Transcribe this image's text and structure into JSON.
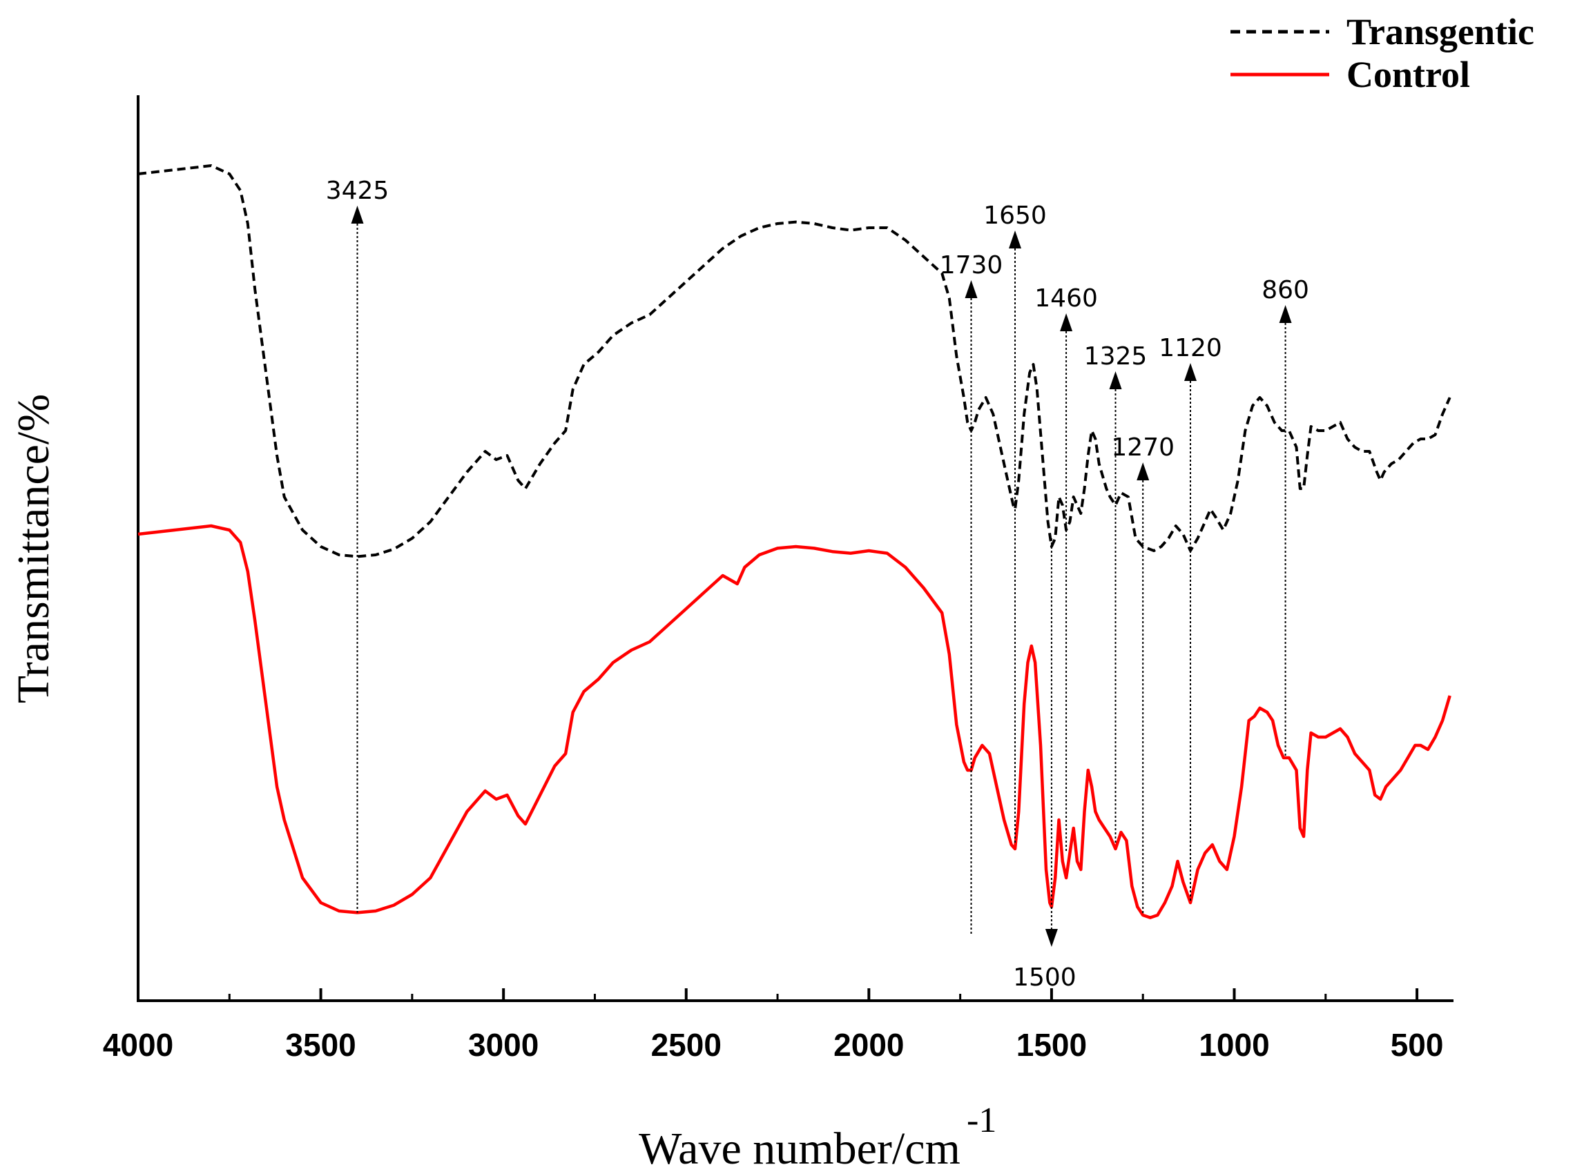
{
  "chart_data": {
    "type": "line",
    "title": "",
    "xlabel": "Wave number/cm",
    "xlabel_superscript": "-1",
    "ylabel": "Transmittance/%",
    "xlim": [
      4000,
      400
    ],
    "ylim": [
      0,
      100
    ],
    "xticks": [
      4000,
      3500,
      3000,
      2500,
      2000,
      1500,
      1000,
      500
    ],
    "grid": false,
    "legend_position": "top-right",
    "series": [
      {
        "name": "Transgentic",
        "color": "#000000",
        "style": "dashed",
        "points": [
          [
            4000,
            94
          ],
          [
            3900,
            94.5
          ],
          [
            3800,
            95
          ],
          [
            3750,
            94
          ],
          [
            3720,
            92
          ],
          [
            3700,
            88
          ],
          [
            3680,
            80
          ],
          [
            3650,
            70
          ],
          [
            3620,
            60
          ],
          [
            3600,
            55
          ],
          [
            3550,
            51
          ],
          [
            3500,
            49
          ],
          [
            3450,
            48
          ],
          [
            3400,
            47.8
          ],
          [
            3350,
            48
          ],
          [
            3300,
            48.7
          ],
          [
            3250,
            50
          ],
          [
            3200,
            52
          ],
          [
            3150,
            55
          ],
          [
            3100,
            58
          ],
          [
            3050,
            60.5
          ],
          [
            3020,
            59.5
          ],
          [
            2990,
            60
          ],
          [
            2960,
            57
          ],
          [
            2940,
            56
          ],
          [
            2900,
            59
          ],
          [
            2860,
            61.5
          ],
          [
            2830,
            63
          ],
          [
            2810,
            68
          ],
          [
            2780,
            71
          ],
          [
            2740,
            72.5
          ],
          [
            2700,
            74.5
          ],
          [
            2650,
            76
          ],
          [
            2600,
            77
          ],
          [
            2550,
            79
          ],
          [
            2500,
            81
          ],
          [
            2450,
            83
          ],
          [
            2400,
            85
          ],
          [
            2350,
            86.5
          ],
          [
            2300,
            87.5
          ],
          [
            2250,
            88
          ],
          [
            2200,
            88.2
          ],
          [
            2150,
            88
          ],
          [
            2100,
            87.5
          ],
          [
            2050,
            87.2
          ],
          [
            2000,
            87.5
          ],
          [
            1950,
            87.5
          ],
          [
            1900,
            86
          ],
          [
            1850,
            84
          ],
          [
            1800,
            82
          ],
          [
            1780,
            79
          ],
          [
            1760,
            72
          ],
          [
            1740,
            67
          ],
          [
            1730,
            64
          ],
          [
            1720,
            63
          ],
          [
            1710,
            64
          ],
          [
            1700,
            65.5
          ],
          [
            1680,
            67
          ],
          [
            1660,
            65
          ],
          [
            1640,
            61
          ],
          [
            1620,
            57
          ],
          [
            1605,
            54
          ],
          [
            1600,
            53.5
          ],
          [
            1590,
            57
          ],
          [
            1575,
            65
          ],
          [
            1560,
            70
          ],
          [
            1550,
            71
          ],
          [
            1540,
            68
          ],
          [
            1525,
            60
          ],
          [
            1510,
            52
          ],
          [
            1500,
            49
          ],
          [
            1490,
            50
          ],
          [
            1480,
            55
          ],
          [
            1470,
            54
          ],
          [
            1460,
            51
          ],
          [
            1450,
            52
          ],
          [
            1440,
            55
          ],
          [
            1430,
            54
          ],
          [
            1420,
            53
          ],
          [
            1410,
            56
          ],
          [
            1400,
            60
          ],
          [
            1390,
            63
          ],
          [
            1380,
            62
          ],
          [
            1370,
            59
          ],
          [
            1350,
            56
          ],
          [
            1340,
            55
          ],
          [
            1325,
            54
          ],
          [
            1310,
            55.5
          ],
          [
            1290,
            55
          ],
          [
            1270,
            50
          ],
          [
            1250,
            49
          ],
          [
            1220,
            48.5
          ],
          [
            1200,
            49
          ],
          [
            1180,
            50
          ],
          [
            1160,
            51.5
          ],
          [
            1140,
            50.5
          ],
          [
            1120,
            48.5
          ],
          [
            1100,
            50
          ],
          [
            1080,
            52
          ],
          [
            1065,
            53.5
          ],
          [
            1050,
            52.5
          ],
          [
            1030,
            51
          ],
          [
            1010,
            53
          ],
          [
            990,
            57
          ],
          [
            970,
            63
          ],
          [
            950,
            66
          ],
          [
            930,
            67
          ],
          [
            910,
            66
          ],
          [
            890,
            64
          ],
          [
            870,
            63
          ],
          [
            850,
            63
          ],
          [
            830,
            61
          ],
          [
            820,
            56
          ],
          [
            810,
            56
          ],
          [
            800,
            60
          ],
          [
            790,
            63.5
          ],
          [
            770,
            63
          ],
          [
            750,
            63
          ],
          [
            730,
            63.5
          ],
          [
            710,
            64
          ],
          [
            690,
            62
          ],
          [
            670,
            61
          ],
          [
            650,
            60.5
          ],
          [
            630,
            60.5
          ],
          [
            610,
            58
          ],
          [
            600,
            57
          ],
          [
            590,
            58
          ],
          [
            570,
            59
          ],
          [
            550,
            59.5
          ],
          [
            530,
            60.5
          ],
          [
            510,
            61.5
          ],
          [
            490,
            62
          ],
          [
            470,
            62
          ],
          [
            450,
            62.5
          ],
          [
            430,
            65
          ],
          [
            410,
            67
          ]
        ]
      },
      {
        "name": "Control",
        "color": "#ff0000",
        "style": "solid",
        "points": [
          [
            4000,
            50.5
          ],
          [
            3900,
            51
          ],
          [
            3800,
            51.5
          ],
          [
            3750,
            51
          ],
          [
            3720,
            49.5
          ],
          [
            3700,
            46
          ],
          [
            3680,
            40
          ],
          [
            3650,
            30
          ],
          [
            3620,
            20
          ],
          [
            3600,
            16
          ],
          [
            3550,
            9
          ],
          [
            3500,
            6
          ],
          [
            3450,
            5
          ],
          [
            3400,
            4.8
          ],
          [
            3350,
            5
          ],
          [
            3300,
            5.7
          ],
          [
            3250,
            7
          ],
          [
            3200,
            9
          ],
          [
            3150,
            13
          ],
          [
            3100,
            17
          ],
          [
            3050,
            19.5
          ],
          [
            3020,
            18.5
          ],
          [
            2990,
            19
          ],
          [
            2960,
            16.5
          ],
          [
            2940,
            15.5
          ],
          [
            2900,
            19
          ],
          [
            2860,
            22.5
          ],
          [
            2830,
            24
          ],
          [
            2810,
            29
          ],
          [
            2780,
            31.5
          ],
          [
            2740,
            33
          ],
          [
            2700,
            35
          ],
          [
            2650,
            36.5
          ],
          [
            2600,
            37.5
          ],
          [
            2550,
            39.5
          ],
          [
            2500,
            41.5
          ],
          [
            2450,
            43.5
          ],
          [
            2400,
            45.5
          ],
          [
            2380,
            45
          ],
          [
            2360,
            44.5
          ],
          [
            2340,
            46.5
          ],
          [
            2300,
            48
          ],
          [
            2250,
            48.8
          ],
          [
            2200,
            49
          ],
          [
            2150,
            48.8
          ],
          [
            2100,
            48.4
          ],
          [
            2050,
            48.2
          ],
          [
            2000,
            48.5
          ],
          [
            1950,
            48.2
          ],
          [
            1900,
            46.5
          ],
          [
            1850,
            44
          ],
          [
            1800,
            41
          ],
          [
            1780,
            36
          ],
          [
            1760,
            27.5
          ],
          [
            1740,
            23
          ],
          [
            1730,
            22
          ],
          [
            1720,
            22
          ],
          [
            1710,
            23.5
          ],
          [
            1690,
            25
          ],
          [
            1670,
            24
          ],
          [
            1650,
            20
          ],
          [
            1630,
            16
          ],
          [
            1610,
            13
          ],
          [
            1600,
            12.5
          ],
          [
            1590,
            17
          ],
          [
            1575,
            30
          ],
          [
            1565,
            35
          ],
          [
            1555,
            37
          ],
          [
            1545,
            35
          ],
          [
            1530,
            25
          ],
          [
            1515,
            10
          ],
          [
            1505,
            6
          ],
          [
            1500,
            5.5
          ],
          [
            1490,
            9
          ],
          [
            1480,
            16
          ],
          [
            1470,
            11
          ],
          [
            1460,
            9
          ],
          [
            1450,
            12
          ],
          [
            1440,
            15
          ],
          [
            1430,
            11
          ],
          [
            1420,
            10
          ],
          [
            1410,
            17
          ],
          [
            1400,
            22
          ],
          [
            1390,
            20
          ],
          [
            1380,
            17
          ],
          [
            1370,
            16
          ],
          [
            1355,
            15
          ],
          [
            1340,
            14
          ],
          [
            1325,
            12.5
          ],
          [
            1310,
            14.5
          ],
          [
            1295,
            13.5
          ],
          [
            1280,
            8
          ],
          [
            1265,
            5.5
          ],
          [
            1250,
            4.5
          ],
          [
            1230,
            4.2
          ],
          [
            1210,
            4.5
          ],
          [
            1190,
            6
          ],
          [
            1170,
            8
          ],
          [
            1155,
            11
          ],
          [
            1140,
            8.5
          ],
          [
            1120,
            6
          ],
          [
            1100,
            10
          ],
          [
            1080,
            12
          ],
          [
            1060,
            13
          ],
          [
            1040,
            11
          ],
          [
            1020,
            10
          ],
          [
            1000,
            14
          ],
          [
            980,
            20
          ],
          [
            960,
            28
          ],
          [
            945,
            28.5
          ],
          [
            930,
            29.5
          ],
          [
            910,
            29
          ],
          [
            895,
            28
          ],
          [
            880,
            25
          ],
          [
            865,
            23.5
          ],
          [
            850,
            23.5
          ],
          [
            830,
            22
          ],
          [
            820,
            15
          ],
          [
            810,
            14
          ],
          [
            800,
            22
          ],
          [
            790,
            26.5
          ],
          [
            770,
            26
          ],
          [
            750,
            26
          ],
          [
            730,
            26.5
          ],
          [
            710,
            27
          ],
          [
            690,
            26
          ],
          [
            670,
            24
          ],
          [
            650,
            23
          ],
          [
            630,
            22
          ],
          [
            615,
            19
          ],
          [
            600,
            18.5
          ],
          [
            585,
            20
          ],
          [
            565,
            21
          ],
          [
            545,
            22
          ],
          [
            525,
            23.5
          ],
          [
            505,
            25
          ],
          [
            490,
            25
          ],
          [
            470,
            24.5
          ],
          [
            450,
            26
          ],
          [
            430,
            28
          ],
          [
            410,
            31
          ]
        ]
      }
    ],
    "annotations": [
      {
        "text": "3425",
        "x": 3400,
        "direction": "up",
        "top_y": 88,
        "bottom_y": 4.8
      },
      {
        "text": "1730",
        "x": 1720,
        "direction": "up",
        "top_y": 79,
        "bottom_y": 2
      },
      {
        "text": "1650",
        "x": 1600,
        "direction": "up",
        "top_y": 85,
        "bottom_y": 13
      },
      {
        "text": "1460",
        "x": 1460,
        "direction": "up",
        "top_y": 75,
        "bottom_y": 12
      },
      {
        "text": "1500",
        "x": 1500,
        "direction": "down",
        "top_y": 50,
        "bottom_y": 1
      },
      {
        "text": "1325",
        "x": 1325,
        "direction": "up",
        "top_y": 68,
        "bottom_y": 13
      },
      {
        "text": "1270",
        "x": 1250,
        "direction": "up",
        "top_y": 57,
        "bottom_y": 4.5
      },
      {
        "text": "1120",
        "x": 1120,
        "direction": "up",
        "top_y": 69,
        "bottom_y": 6
      },
      {
        "text": "860",
        "x": 860,
        "direction": "up",
        "top_y": 76,
        "bottom_y": 23.5
      }
    ]
  }
}
